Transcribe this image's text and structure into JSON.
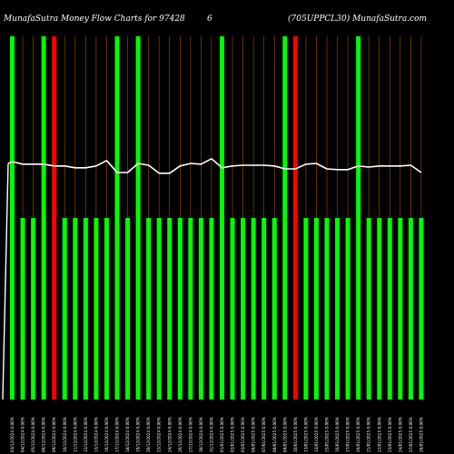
{
  "chart_data": {
    "type": "bar",
    "title": "MunafaSutra  Money Flow  Charts for 97428",
    "title_mid": "6",
    "subtitle": "(705UPPCL30) MunafaSutra.com",
    "colors": {
      "background": "#000000",
      "up": "#00ff00",
      "down": "#ff0000",
      "grid": "#cc6600",
      "line": "#ffffff"
    },
    "ylim": [
      0,
      100
    ],
    "categories": [
      "03/12/2024 0.00%",
      "04/12/2024 0.00%",
      "05/12/2024 0.00%",
      "06/12/2024 0.00%",
      "09/12/2024 0.00%",
      "10/12/2024 0.00%",
      "11/12/2024 0.00%",
      "12/12/2024 0.00%",
      "13/12/2024 0.00%",
      "16/12/2024 0.00%",
      "17/12/2024 0.00%",
      "18/12/2024 0.00%",
      "19/12/2024 0.00%",
      "20/12/2024 0.00%",
      "23/12/2024 0.00%",
      "24/12/2024 0.00%",
      "26/12/2024 0.00%",
      "27/12/2024 0.00%",
      "30/12/2024 0.00%",
      "31/12/2024 0.00%",
      "01/01/2025 0.00%",
      "02/01/2025 0.00%",
      "03/01/2025 0.00%",
      "06/01/2025 0.00%",
      "07/01/2025 0.00%",
      "08/01/2025 0.00%",
      "09/01/2025 0.00%",
      "10/01/2025 0.00%",
      "13/01/2025 0.00%",
      "14/01/2025 0.00%",
      "15/01/2025 0.00%",
      "16/01/2025 0.00%",
      "17/01/2025 0.00%",
      "20/01/2025 0.00%",
      "21/01/2025 0.00%",
      "22/01/2025 0.00%",
      "23/01/2025 0.00%",
      "24/01/2025 0.00%",
      "27/01/2025 0.00%",
      "28/01/2025 0.00%"
    ],
    "bars": [
      {
        "value": 100,
        "dir": "up"
      },
      {
        "value": 50,
        "dir": "up"
      },
      {
        "value": 50,
        "dir": "up"
      },
      {
        "value": 100,
        "dir": "up"
      },
      {
        "value": 100,
        "dir": "down"
      },
      {
        "value": 50,
        "dir": "up"
      },
      {
        "value": 50,
        "dir": "up"
      },
      {
        "value": 50,
        "dir": "up"
      },
      {
        "value": 50,
        "dir": "up"
      },
      {
        "value": 50,
        "dir": "up"
      },
      {
        "value": 100,
        "dir": "up"
      },
      {
        "value": 50,
        "dir": "up"
      },
      {
        "value": 100,
        "dir": "up"
      },
      {
        "value": 50,
        "dir": "up"
      },
      {
        "value": 50,
        "dir": "up"
      },
      {
        "value": 50,
        "dir": "up"
      },
      {
        "value": 50,
        "dir": "up"
      },
      {
        "value": 50,
        "dir": "up"
      },
      {
        "value": 50,
        "dir": "up"
      },
      {
        "value": 50,
        "dir": "up"
      },
      {
        "value": 100,
        "dir": "up"
      },
      {
        "value": 50,
        "dir": "up"
      },
      {
        "value": 50,
        "dir": "up"
      },
      {
        "value": 50,
        "dir": "up"
      },
      {
        "value": 50,
        "dir": "up"
      },
      {
        "value": 50,
        "dir": "up"
      },
      {
        "value": 100,
        "dir": "up"
      },
      {
        "value": 100,
        "dir": "down"
      },
      {
        "value": 50,
        "dir": "up"
      },
      {
        "value": 50,
        "dir": "up"
      },
      {
        "value": 50,
        "dir": "up"
      },
      {
        "value": 50,
        "dir": "up"
      },
      {
        "value": 50,
        "dir": "up"
      },
      {
        "value": 100,
        "dir": "up"
      },
      {
        "value": 50,
        "dir": "up"
      },
      {
        "value": 50,
        "dir": "up"
      },
      {
        "value": 50,
        "dir": "up"
      },
      {
        "value": 50,
        "dir": "up"
      },
      {
        "value": 50,
        "dir": "up"
      },
      {
        "value": 50,
        "dir": "up"
      }
    ],
    "line_values": [
      65.5,
      64.8,
      64.8,
      64.8,
      64.3,
      64.3,
      63.8,
      63.8,
      64.3,
      65.8,
      62.5,
      62.5,
      65.0,
      64.5,
      62.3,
      62.3,
      64.3,
      65.0,
      64.8,
      66.3,
      63.8,
      64.3,
      64.5,
      64.5,
      64.5,
      64.3,
      63.5,
      63.5,
      64.8,
      65.0,
      63.5,
      63.3,
      63.3,
      64.3,
      64.0,
      64.3,
      64.3,
      64.3,
      64.5,
      62.5
    ],
    "vertical_grid": true
  }
}
